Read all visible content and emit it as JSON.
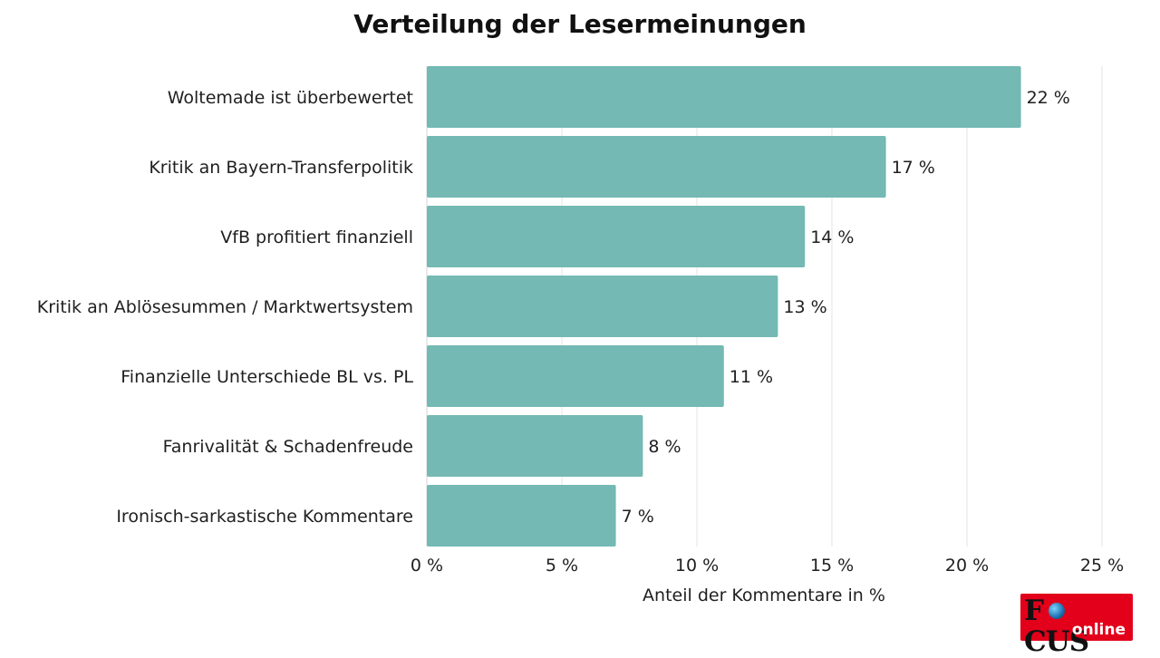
{
  "chart_data": {
    "type": "bar",
    "orientation": "horizontal",
    "title": "Verteilung der Lesermeinungen",
    "xlabel": "Anteil der Kommentare in %",
    "categories": [
      "Woltemade ist überbewertet",
      "Kritik an Bayern-Transferpolitik",
      "VfB profitiert finanziell",
      "Kritik an Ablösesummen / Marktwertsystem",
      "Finanzielle Unterschiede BL vs. PL",
      "Fanrivalität & Schadenfreude",
      "Ironisch-sarkastische Kommentare"
    ],
    "values": [
      22,
      17,
      14,
      13,
      11,
      8,
      7
    ],
    "value_labels": [
      "22 %",
      "17 %",
      "14 %",
      "13 %",
      "11 %",
      "8 %",
      "7 %"
    ],
    "xlim": [
      0,
      25
    ],
    "xticks": [
      0,
      5,
      10,
      15,
      20,
      25
    ],
    "xtick_labels": [
      "0 %",
      "5 %",
      "10 %",
      "15 %",
      "20 %",
      "25 %"
    ],
    "grid": true,
    "bar_color": "#74b9b3"
  },
  "logo": {
    "main": "FOCUS",
    "sub": "online",
    "color": "#e2001a"
  }
}
